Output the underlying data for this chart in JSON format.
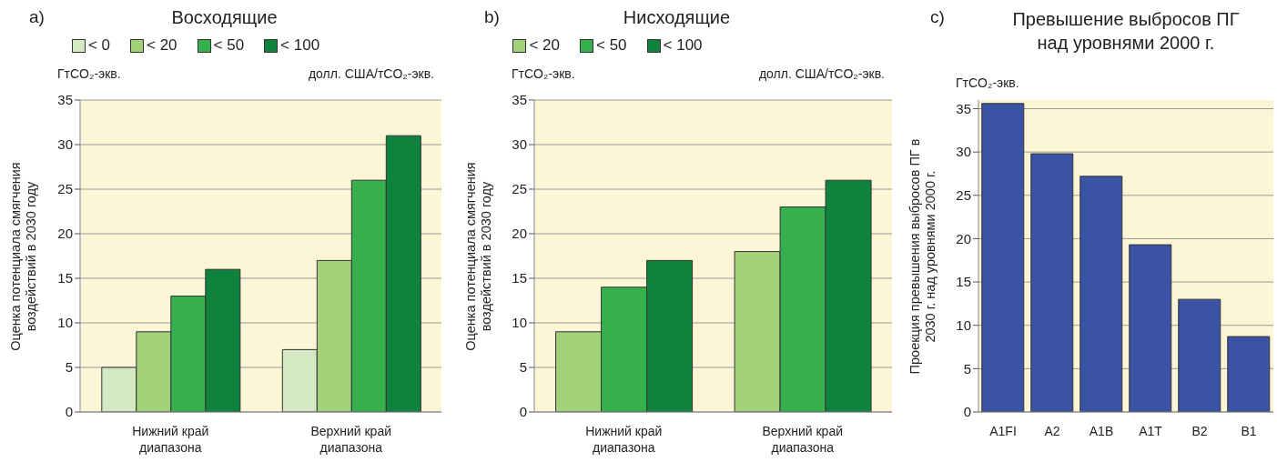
{
  "chart_data": [
    {
      "type": "bar",
      "title": "Восходящие",
      "ylabel": "Оценка потенциала смягчения воздействий в 2030 году",
      "legend_title": "долл. США/тCO₂-экв.",
      "annotations": [
        "a)",
        "ГтCO₂-экв."
      ],
      "categories": [
        "Нижний край диапазона",
        "Верхний край диапазона"
      ],
      "series": [
        {
          "name": "< 0",
          "color": "#d4e9c3",
          "values": [
            5,
            7
          ]
        },
        {
          "name": "< 20",
          "color": "#a3d17a",
          "values": [
            9,
            17
          ]
        },
        {
          "name": "< 50",
          "color": "#36b04c",
          "values": [
            13,
            26
          ]
        },
        {
          "name": "< 100",
          "color": "#0f823e",
          "values": [
            16,
            31
          ]
        }
      ],
      "ylim": [
        0,
        35
      ],
      "yticks": [
        0,
        5,
        10,
        15,
        20,
        25,
        30,
        35
      ],
      "grid": "y",
      "legend": "top"
    },
    {
      "type": "bar",
      "title": "Нисходящие",
      "ylabel": "Оценка потенциала смягчения воздействий в 2030 году",
      "legend_title": "долл. США/тCO₂-экв.",
      "annotations": [
        "b)",
        "ГтCO₂-экв."
      ],
      "categories": [
        "Нижний край диапазона",
        "Верхний край диапазона"
      ],
      "series": [
        {
          "name": "< 20",
          "color": "#a3d17a",
          "values": [
            9,
            18
          ]
        },
        {
          "name": "< 50",
          "color": "#36b04c",
          "values": [
            14,
            23
          ]
        },
        {
          "name": "< 100",
          "color": "#0f823e",
          "values": [
            17,
            26
          ]
        }
      ],
      "ylim": [
        0,
        35
      ],
      "yticks": [
        0,
        5,
        10,
        15,
        20,
        25,
        30,
        35
      ],
      "grid": "y",
      "legend": "top"
    },
    {
      "type": "bar",
      "title": "Превышение выбросов ПГ над уровнями 2000 г.",
      "ylabel": "Проекция превышения выбросов ПГ в 2030 г. над уровнями 2000 г.",
      "annotations": [
        "c)",
        "ГтCO₂-экв."
      ],
      "categories": [
        "A1FI",
        "A2",
        "A1B",
        "A1T",
        "B2",
        "B1"
      ],
      "series": [
        {
          "color": "#3a53a4",
          "values": [
            35.6,
            29.8,
            27.2,
            19.3,
            13.0,
            8.7
          ]
        }
      ],
      "ylim": [
        0,
        36
      ],
      "yticks": [
        0,
        5,
        10,
        15,
        20,
        25,
        30,
        35
      ],
      "grid": "y"
    }
  ]
}
